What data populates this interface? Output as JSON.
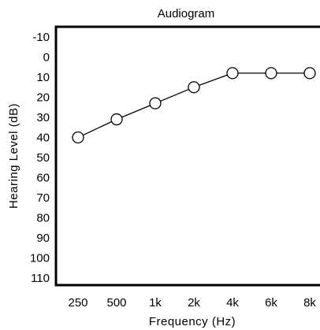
{
  "chart_data": {
    "type": "line",
    "title": "Audiogram",
    "xlabel": "Frequency (Hz)",
    "ylabel": "Hearing Level (dB)",
    "categories": [
      "250",
      "500",
      "1k",
      "2k",
      "4k",
      "6k",
      "8k"
    ],
    "ylim": [
      -10,
      110
    ],
    "y_inverted": true,
    "y_ticks": [
      "-10",
      "0",
      "10",
      "20",
      "30",
      "40",
      "50",
      "60",
      "70",
      "80",
      "90",
      "100",
      "110"
    ],
    "grid": false,
    "marker": "open-circle",
    "series": [
      {
        "values": [
          40,
          31,
          23,
          15,
          8,
          8,
          8
        ]
      }
    ]
  }
}
